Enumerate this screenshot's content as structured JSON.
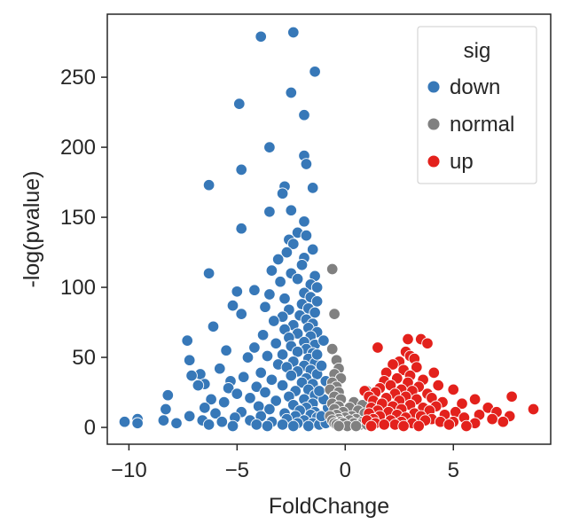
{
  "chart_data": {
    "type": "scatter",
    "title": "",
    "xlabel": "FoldChange",
    "ylabel": "-log(pvalue)",
    "xlim": [
      -11,
      9.5
    ],
    "ylim": [
      -12,
      295
    ],
    "xticks": [
      -10,
      -5,
      0,
      5
    ],
    "xtick_labels": [
      "−10",
      "−5",
      "0",
      "5"
    ],
    "yticks": [
      0,
      50,
      100,
      150,
      200,
      250
    ],
    "ytick_labels": [
      "0",
      "50",
      "100",
      "150",
      "200",
      "250"
    ],
    "grid": false,
    "legend": {
      "title": "sig",
      "placement": "top-right",
      "entries": [
        {
          "label": "down",
          "color": "#3778b8"
        },
        {
          "label": "normal",
          "color": "#808080"
        },
        {
          "label": "up",
          "color": "#e3211c"
        }
      ]
    },
    "series": [
      {
        "name": "down",
        "color": "#3778b8",
        "points": [
          [
            -2.4,
            282
          ],
          [
            -3.9,
            279
          ],
          [
            -1.4,
            254
          ],
          [
            -2.5,
            239
          ],
          [
            -4.9,
            231
          ],
          [
            -1.9,
            223
          ],
          [
            -3.5,
            200
          ],
          [
            -1.9,
            194
          ],
          [
            -1.8,
            188
          ],
          [
            -4.8,
            184
          ],
          [
            -6.3,
            173
          ],
          [
            -2.8,
            172
          ],
          [
            -1.5,
            171
          ],
          [
            -2.9,
            167
          ],
          [
            -2.5,
            155
          ],
          [
            -3.5,
            154
          ],
          [
            -1.9,
            147
          ],
          [
            -4.8,
            142
          ],
          [
            -2.2,
            139
          ],
          [
            -1.8,
            137
          ],
          [
            -2.6,
            134
          ],
          [
            -2.4,
            131
          ],
          [
            -1.5,
            127
          ],
          [
            -2.7,
            125
          ],
          [
            -1.9,
            121
          ],
          [
            -3.1,
            120
          ],
          [
            -2.0,
            116
          ],
          [
            -3.4,
            112
          ],
          [
            -2.5,
            110
          ],
          [
            -6.3,
            110
          ],
          [
            -1.4,
            108
          ],
          [
            -2.2,
            106
          ],
          [
            -3.0,
            104
          ],
          [
            -1.6,
            102
          ],
          [
            -1.3,
            100
          ],
          [
            -4.2,
            98
          ],
          [
            -5.0,
            97
          ],
          [
            -1.9,
            96
          ],
          [
            -3.5,
            95
          ],
          [
            -1.6,
            93
          ],
          [
            -2.8,
            92
          ],
          [
            -1.3,
            90
          ],
          [
            -2.0,
            88
          ],
          [
            -5.2,
            87
          ],
          [
            -3.7,
            86
          ],
          [
            -1.7,
            85
          ],
          [
            -2.6,
            84
          ],
          [
            -1.4,
            82
          ],
          [
            -4.8,
            81
          ],
          [
            -2.1,
            80
          ],
          [
            -2.9,
            79
          ],
          [
            -1.8,
            77
          ],
          [
            -3.3,
            76
          ],
          [
            -1.5,
            74
          ],
          [
            -2.4,
            73
          ],
          [
            -6.1,
            72
          ],
          [
            -1.7,
            71
          ],
          [
            -2.8,
            70
          ],
          [
            -1.3,
            68
          ],
          [
            -2.2,
            67
          ],
          [
            -3.8,
            66
          ],
          [
            -1.6,
            65
          ],
          [
            -2.6,
            64
          ],
          [
            -7.3,
            62
          ],
          [
            -1.9,
            61
          ],
          [
            -3.2,
            60
          ],
          [
            -1.4,
            59
          ],
          [
            -2.5,
            58
          ],
          [
            -4.2,
            57
          ],
          [
            -1.8,
            56
          ],
          [
            -5.5,
            55
          ],
          [
            -2.2,
            54
          ],
          [
            -1.5,
            53
          ],
          [
            -2.9,
            52
          ],
          [
            -3.6,
            51
          ],
          [
            -4.5,
            50
          ],
          [
            -1.7,
            49
          ],
          [
            -7.2,
            48
          ],
          [
            -2.4,
            47
          ],
          [
            -1.4,
            46
          ],
          [
            -3.1,
            45
          ],
          [
            -1.9,
            44
          ],
          [
            -2.7,
            43
          ],
          [
            -5.8,
            42
          ],
          [
            -1.6,
            41
          ],
          [
            -2.2,
            40
          ],
          [
            -3.9,
            39
          ],
          [
            -1.3,
            38
          ],
          [
            -6.7,
            38
          ],
          [
            -7.1,
            37
          ],
          [
            -2.5,
            37
          ],
          [
            -4.7,
            36
          ],
          [
            -1.8,
            35
          ],
          [
            -3.4,
            34
          ],
          [
            -5.3,
            33
          ],
          [
            -2.0,
            32
          ],
          [
            -6.5,
            31
          ],
          [
            -1.5,
            31
          ],
          [
            -2.9,
            30
          ],
          [
            -4.1,
            29
          ],
          [
            -6.8,
            30
          ],
          [
            -5.4,
            28
          ],
          [
            -1.7,
            27
          ],
          [
            -2.3,
            26
          ],
          [
            -3.7,
            25
          ],
          [
            -5.0,
            24
          ],
          [
            -8.2,
            23
          ],
          [
            -1.4,
            23
          ],
          [
            -2.6,
            22
          ],
          [
            -4.4,
            21
          ],
          [
            -6.2,
            20
          ],
          [
            -1.9,
            20
          ],
          [
            -3.2,
            19
          ],
          [
            -5.6,
            18
          ],
          [
            -1.5,
            17
          ],
          [
            -2.4,
            16
          ],
          [
            -4.0,
            15
          ],
          [
            -6.5,
            14
          ],
          [
            -1.8,
            14
          ],
          [
            -3.5,
            13
          ],
          [
            -8.3,
            13
          ],
          [
            -2.1,
            12
          ],
          [
            -4.8,
            11
          ],
          [
            -1.4,
            11
          ],
          [
            -2.8,
            10
          ],
          [
            -6.0,
            10
          ],
          [
            -1.6,
            9
          ],
          [
            -3.9,
            8
          ],
          [
            -7.2,
            8
          ],
          [
            -2.3,
            8
          ],
          [
            -5.1,
            7
          ],
          [
            -1.3,
            7
          ],
          [
            -9.6,
            6
          ],
          [
            -2.7,
            6
          ],
          [
            -4.4,
            5
          ],
          [
            -8.4,
            5
          ],
          [
            -6.6,
            5
          ],
          [
            -1.9,
            5
          ],
          [
            -10.2,
            4
          ],
          [
            -3.4,
            4
          ],
          [
            -5.7,
            4
          ],
          [
            -2.2,
            3
          ],
          [
            -7.8,
            3
          ],
          [
            -9.6,
            3
          ],
          [
            -1.5,
            3
          ],
          [
            -4.1,
            2
          ],
          [
            -6.3,
            2
          ],
          [
            -2.9,
            2
          ],
          [
            -1.7,
            1
          ],
          [
            -3.6,
            1
          ],
          [
            -5.2,
            1
          ],
          [
            -2.4,
            1
          ],
          [
            -1.2,
            2
          ],
          [
            -0.9,
            3
          ],
          [
            -1.1,
            8
          ],
          [
            -0.8,
            14
          ],
          [
            -1.0,
            20
          ],
          [
            -1.2,
            26
          ],
          [
            -0.9,
            33
          ],
          [
            -1.1,
            44
          ],
          [
            -1.3,
            52
          ],
          [
            -1.0,
            62
          ]
        ]
      },
      {
        "name": "normal",
        "color": "#808080",
        "points": [
          [
            -0.6,
            113
          ],
          [
            -0.5,
            81
          ],
          [
            -0.6,
            56
          ],
          [
            -0.4,
            48
          ],
          [
            -0.3,
            42
          ],
          [
            -0.5,
            38
          ],
          [
            -0.2,
            35
          ],
          [
            -0.6,
            32
          ],
          [
            -0.4,
            29
          ],
          [
            -0.7,
            27
          ],
          [
            -0.3,
            25
          ],
          [
            1.0,
            26
          ],
          [
            -0.5,
            22
          ],
          [
            -0.2,
            20
          ],
          [
            0.4,
            18
          ],
          [
            -0.6,
            17
          ],
          [
            0.8,
            16
          ],
          [
            -0.3,
            15
          ],
          [
            0.2,
            14
          ],
          [
            -0.5,
            13
          ],
          [
            0.6,
            12
          ],
          [
            -0.1,
            11
          ],
          [
            0.9,
            10
          ],
          [
            -0.4,
            9
          ],
          [
            0.3,
            8
          ],
          [
            -0.7,
            8
          ],
          [
            1.1,
            7
          ],
          [
            0.0,
            7
          ],
          [
            -0.3,
            6
          ],
          [
            0.5,
            6
          ],
          [
            -0.6,
            5
          ],
          [
            0.2,
            5
          ],
          [
            0.8,
            4
          ],
          [
            -0.2,
            4
          ],
          [
            1.2,
            4
          ],
          [
            -0.5,
            3
          ],
          [
            0.4,
            3
          ],
          [
            -0.1,
            3
          ],
          [
            0.7,
            2
          ],
          [
            -0.4,
            2
          ],
          [
            1.0,
            2
          ],
          [
            0.1,
            1
          ],
          [
            -0.3,
            1
          ],
          [
            0.5,
            1
          ]
        ]
      },
      {
        "name": "up",
        "color": "#e3211c",
        "points": [
          [
            2.9,
            63
          ],
          [
            3.5,
            63
          ],
          [
            3.8,
            60
          ],
          [
            1.5,
            57
          ],
          [
            2.8,
            54
          ],
          [
            3.0,
            51
          ],
          [
            3.2,
            49
          ],
          [
            2.5,
            47
          ],
          [
            2.2,
            45
          ],
          [
            4.1,
            39
          ],
          [
            3.3,
            43
          ],
          [
            2.7,
            41
          ],
          [
            1.9,
            39
          ],
          [
            3.0,
            37
          ],
          [
            2.4,
            35
          ],
          [
            3.6,
            34
          ],
          [
            1.8,
            33
          ],
          [
            2.9,
            32
          ],
          [
            4.3,
            30
          ],
          [
            2.1,
            30
          ],
          [
            3.4,
            29
          ],
          [
            1.6,
            28
          ],
          [
            5.0,
            27
          ],
          [
            2.6,
            27
          ],
          [
            3.1,
            26
          ],
          [
            0.9,
            26
          ],
          [
            1.4,
            25
          ],
          [
            2.3,
            24
          ],
          [
            3.8,
            24
          ],
          [
            1.1,
            22
          ],
          [
            2.8,
            22
          ],
          [
            7.7,
            22
          ],
          [
            4.0,
            21
          ],
          [
            1.9,
            21
          ],
          [
            3.3,
            20
          ],
          [
            6.0,
            20
          ],
          [
            1.3,
            19
          ],
          [
            2.5,
            19
          ],
          [
            4.5,
            18
          ],
          [
            5.4,
            17
          ],
          [
            1.7,
            17
          ],
          [
            3.0,
            16
          ],
          [
            2.2,
            15
          ],
          [
            4.2,
            15
          ],
          [
            1.2,
            14
          ],
          [
            3.6,
            14
          ],
          [
            6.6,
            14
          ],
          [
            2.6,
            13
          ],
          [
            8.7,
            13
          ],
          [
            1.5,
            12
          ],
          [
            3.9,
            12
          ],
          [
            5.1,
            11
          ],
          [
            2.0,
            11
          ],
          [
            7.0,
            11
          ],
          [
            3.2,
            10
          ],
          [
            1.1,
            10
          ],
          [
            4.6,
            9
          ],
          [
            2.4,
            9
          ],
          [
            6.2,
            9
          ],
          [
            7.6,
            8
          ],
          [
            1.6,
            8
          ],
          [
            3.5,
            8
          ],
          [
            2.8,
            7
          ],
          [
            5.5,
            7
          ],
          [
            1.3,
            6
          ],
          [
            4.0,
            6
          ],
          [
            6.8,
            6
          ],
          [
            2.1,
            5
          ],
          [
            3.7,
            5
          ],
          [
            1.0,
            5
          ],
          [
            5.0,
            4
          ],
          [
            2.6,
            4
          ],
          [
            7.3,
            4
          ],
          [
            4.4,
            4
          ],
          [
            1.4,
            3
          ],
          [
            3.1,
            3
          ],
          [
            6.0,
            3
          ],
          [
            2.3,
            2
          ],
          [
            4.8,
            2
          ],
          [
            1.8,
            2
          ],
          [
            3.4,
            1
          ],
          [
            5.6,
            1
          ],
          [
            2.7,
            1
          ],
          [
            1.2,
            1
          ]
        ]
      }
    ]
  }
}
